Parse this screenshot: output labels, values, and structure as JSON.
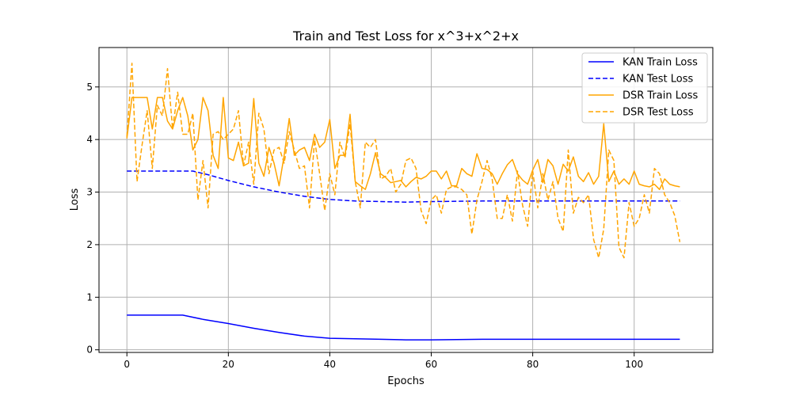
{
  "chart_data": {
    "type": "line",
    "title": "Train and Test Loss for x^3+x^2+x",
    "xlabel": "Epochs",
    "ylabel": "Loss",
    "xlim": [
      -5.5,
      115.5
    ],
    "ylim": [
      -0.05,
      5.75
    ],
    "xticks": [
      0,
      20,
      40,
      60,
      80,
      100
    ],
    "yticks": [
      0,
      1,
      2,
      3,
      4,
      5
    ],
    "grid": true,
    "legend_position": "top-right",
    "series": [
      {
        "name": "KAN Train Loss",
        "color": "#0000ff",
        "dashed": false,
        "x": [
          0,
          11,
          15,
          20,
          25,
          30,
          35,
          40,
          45,
          50,
          55,
          60,
          70,
          80,
          90,
          100,
          109
        ],
        "y": [
          0.66,
          0.66,
          0.58,
          0.5,
          0.41,
          0.33,
          0.26,
          0.22,
          0.21,
          0.2,
          0.19,
          0.19,
          0.2,
          0.2,
          0.2,
          0.2,
          0.2
        ]
      },
      {
        "name": "KAN Test Loss",
        "color": "#0000ff",
        "dashed": true,
        "x": [
          0,
          13,
          16,
          20,
          25,
          30,
          35,
          40,
          45,
          50,
          55,
          60,
          70,
          80,
          90,
          100,
          109
        ],
        "y": [
          3.4,
          3.4,
          3.33,
          3.22,
          3.1,
          3.0,
          2.92,
          2.86,
          2.83,
          2.82,
          2.81,
          2.82,
          2.83,
          2.83,
          2.83,
          2.83,
          2.83
        ]
      },
      {
        "name": "DSR Train Loss",
        "color": "#ffa500",
        "dashed": false,
        "x": [
          0,
          1,
          2,
          3,
          4,
          5,
          6,
          7,
          8,
          9,
          10,
          11,
          12,
          13,
          14,
          15,
          16,
          17,
          18,
          19,
          20,
          21,
          22,
          23,
          24,
          25,
          26,
          27,
          28,
          29,
          30,
          31,
          32,
          33,
          34,
          35,
          36,
          37,
          38,
          39,
          40,
          41,
          42,
          43,
          44,
          45,
          46,
          47,
          48,
          49,
          50,
          51,
          52,
          53,
          54,
          55,
          56,
          57,
          58,
          59,
          60,
          61,
          62,
          63,
          64,
          65,
          66,
          67,
          68,
          69,
          70,
          71,
          72,
          73,
          74,
          75,
          76,
          77,
          78,
          79,
          80,
          81,
          82,
          83,
          84,
          85,
          86,
          87,
          88,
          89,
          90,
          91,
          92,
          93,
          94,
          95,
          96,
          97,
          98,
          99,
          100,
          101,
          102,
          103,
          104,
          105,
          106,
          107,
          108,
          109
        ],
        "y": [
          4.02,
          4.8,
          4.8,
          4.8,
          4.8,
          4.2,
          4.8,
          4.8,
          4.35,
          4.2,
          4.55,
          4.8,
          4.45,
          3.8,
          4.0,
          4.8,
          4.55,
          3.7,
          3.45,
          4.8,
          3.65,
          3.6,
          3.95,
          3.5,
          3.55,
          4.78,
          3.55,
          3.3,
          3.85,
          3.55,
          3.12,
          3.7,
          4.4,
          3.7,
          3.8,
          3.85,
          3.6,
          4.1,
          3.85,
          3.95,
          4.38,
          3.45,
          3.7,
          3.7,
          4.48,
          3.2,
          3.12,
          3.05,
          3.35,
          3.75,
          3.35,
          3.28,
          3.18,
          3.2,
          3.22,
          3.1,
          3.2,
          3.28,
          3.25,
          3.3,
          3.4,
          3.4,
          3.25,
          3.4,
          3.12,
          3.12,
          3.45,
          3.35,
          3.3,
          3.73,
          3.45,
          3.43,
          3.35,
          3.15,
          3.35,
          3.52,
          3.62,
          3.35,
          3.23,
          3.15,
          3.42,
          3.62,
          3.18,
          3.62,
          3.5,
          3.15,
          3.53,
          3.4,
          3.67,
          3.3,
          3.2,
          3.37,
          3.15,
          3.3,
          4.3,
          3.2,
          3.4,
          3.15,
          3.25,
          3.15,
          3.4,
          3.15,
          3.12,
          3.1,
          3.15,
          3.05,
          3.25,
          3.15,
          3.12,
          3.1
        ]
      },
      {
        "name": "DSR Test Loss",
        "color": "#ffa500",
        "dashed": true,
        "x": [
          0,
          1,
          2,
          3,
          4,
          5,
          6,
          7,
          8,
          9,
          10,
          11,
          12,
          13,
          14,
          15,
          16,
          17,
          18,
          19,
          20,
          21,
          22,
          23,
          24,
          25,
          26,
          27,
          28,
          29,
          30,
          31,
          32,
          33,
          34,
          35,
          36,
          37,
          38,
          39,
          40,
          41,
          42,
          43,
          44,
          45,
          46,
          47,
          48,
          49,
          50,
          51,
          52,
          53,
          54,
          55,
          56,
          57,
          58,
          59,
          60,
          61,
          62,
          63,
          64,
          65,
          66,
          67,
          68,
          69,
          70,
          71,
          72,
          73,
          74,
          75,
          76,
          77,
          78,
          79,
          80,
          81,
          82,
          83,
          84,
          85,
          86,
          87,
          88,
          89,
          90,
          91,
          92,
          93,
          94,
          95,
          96,
          97,
          98,
          99,
          100,
          101,
          102,
          103,
          104,
          105,
          106,
          107,
          108,
          109
        ],
        "y": [
          4.05,
          5.45,
          3.2,
          3.9,
          4.55,
          3.45,
          4.65,
          4.45,
          5.35,
          4.2,
          4.9,
          4.1,
          4.1,
          4.5,
          2.85,
          3.6,
          2.7,
          4.1,
          4.15,
          4.0,
          4.1,
          4.2,
          4.55,
          3.5,
          3.95,
          3.15,
          4.5,
          4.2,
          3.35,
          3.8,
          3.85,
          3.55,
          4.15,
          3.8,
          3.45,
          3.5,
          2.7,
          4.0,
          3.35,
          2.65,
          3.35,
          2.95,
          3.95,
          3.65,
          4.3,
          3.2,
          2.7,
          3.95,
          3.85,
          4.0,
          3.25,
          3.3,
          3.45,
          3.0,
          3.15,
          3.6,
          3.65,
          3.45,
          2.65,
          2.4,
          2.85,
          2.95,
          2.6,
          3.05,
          3.1,
          3.1,
          3.05,
          2.95,
          2.2,
          2.85,
          3.2,
          3.6,
          3.25,
          2.5,
          2.5,
          2.95,
          2.45,
          3.4,
          2.75,
          2.35,
          3.4,
          2.7,
          3.35,
          2.85,
          3.2,
          2.5,
          2.25,
          3.8,
          2.6,
          2.9,
          2.8,
          2.95,
          2.1,
          1.75,
          2.3,
          3.8,
          3.6,
          1.95,
          1.75,
          2.8,
          2.35,
          2.5,
          2.95,
          2.6,
          3.45,
          3.35,
          2.95,
          2.8,
          2.55,
          2.05
        ]
      }
    ]
  }
}
